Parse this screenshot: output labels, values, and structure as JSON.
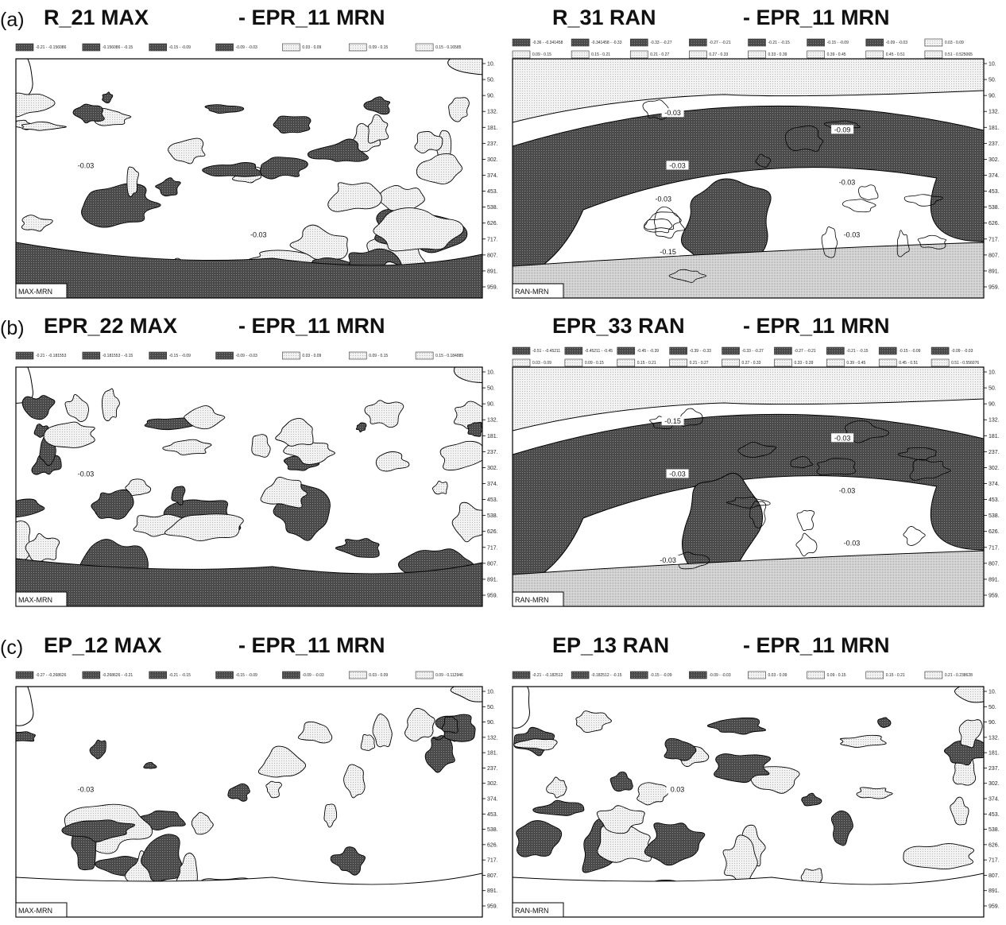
{
  "yticks": [
    "10.",
    "50.",
    "90.",
    "132.",
    "181.",
    "237.",
    "302.",
    "374.",
    "453.",
    "538.",
    "626.",
    "717.",
    "807.",
    "891.",
    "959."
  ],
  "rows": [
    {
      "label": "(a)",
      "panels": [
        {
          "title": "R_21 MAX",
          "suffix": "- EPR_11 MRN",
          "inset": "MAX-MRN",
          "legend": [
            "-0.21 - -0.156086",
            "-0.156086 - -0.15",
            "-0.15 - -0.09",
            "-0.09 - -0.03",
            "0.03 - 0.09",
            "0.09 - 0.15",
            "0.15 - 0.16585"
          ],
          "contour_labels": [
            "-0.03",
            "-0.03"
          ]
        },
        {
          "title": "R_31 RAN",
          "suffix": "- EPR_11 MRN",
          "inset": "RAN-MRN",
          "legend": [
            "-0.36 - -0.341458",
            "-0.341458 - -0.33",
            "-0.33 - -0.27",
            "-0.27 - -0.21",
            "-0.21 - -0.15",
            "-0.15 - -0.09",
            "-0.09 - -0.03",
            "0.03 - 0.09",
            "0.09 - 0.15",
            "0.15 - 0.21",
            "0.21 - 0.27",
            "0.27 - 0.33",
            "0.33 - 0.39",
            "0.39 - 0.45",
            "0.45 - 0.51",
            "0.51 - 0.525065"
          ],
          "contour_labels": [
            "-0.03",
            "-0.03",
            "-0.03",
            "-0.03",
            "-0.15",
            "-0.09",
            "-0.03"
          ]
        }
      ]
    },
    {
      "label": "(b)",
      "panels": [
        {
          "title": "EPR_22 MAX",
          "suffix": "- EPR_11 MRN",
          "inset": "MAX-MRN",
          "legend": [
            "-0.21 - -0.181553",
            "-0.181553 - -0.15",
            "-0.15 - -0.09",
            "-0.09 - -0.03",
            "0.03 - 0.09",
            "0.09 - 0.15",
            "0.15 - 0.184885"
          ],
          "contour_labels": [
            "-0.03"
          ]
        },
        {
          "title": "EPR_33 RAN",
          "suffix": "- EPR_11 MRN",
          "inset": "RAN-MRN",
          "legend": [
            "-0.51 - -0.45211",
            "-0.45211 - -0.45",
            "-0.45 - -0.39",
            "-0.39 - -0.33",
            "-0.33 - -0.27",
            "-0.27 - -0.21",
            "-0.21 - -0.15",
            "-0.15 - -0.09",
            "-0.09 - -0.03",
            "0.03 - 0.09",
            "0.09 - 0.15",
            "0.15 - 0.21",
            "0.21 - 0.27",
            "0.27 - 0.33",
            "0.33 - 0.39",
            "0.39 - 0.45",
            "0.45 - 0.51",
            "0.51 - 0.556076"
          ],
          "contour_labels": [
            "-0.03",
            "-0.03",
            "-0.15",
            "-0.03",
            "-0.03",
            "-0.03"
          ]
        }
      ]
    },
    {
      "label": "(c)",
      "panels": [
        {
          "title": "EP_12 MAX",
          "suffix": "- EPR_11 MRN",
          "inset": "MAX-MRN",
          "legend": [
            "-0.27 - -0.268626",
            "-0.268626 - -0.21",
            "-0.21 - -0.15",
            "-0.15 - -0.09",
            "-0.09 - -0.03",
            "0.03 - 0.09",
            "0.09 - 0.112946"
          ],
          "contour_labels": [
            "-0.03"
          ]
        },
        {
          "title": "EP_13 RAN",
          "suffix": "- EPR_11 MRN",
          "inset": "RAN-MRN",
          "legend": [
            "-0.21 - -0.182512",
            "-0.182512 - -0.15",
            "-0.15 - -0.09",
            "-0.09 - -0.03",
            "0.03 - 0.09",
            "0.09 - 0.15",
            "0.15 - 0.21",
            "0.21 - 0.238628"
          ],
          "contour_labels": [
            "0.03"
          ]
        }
      ]
    }
  ]
}
